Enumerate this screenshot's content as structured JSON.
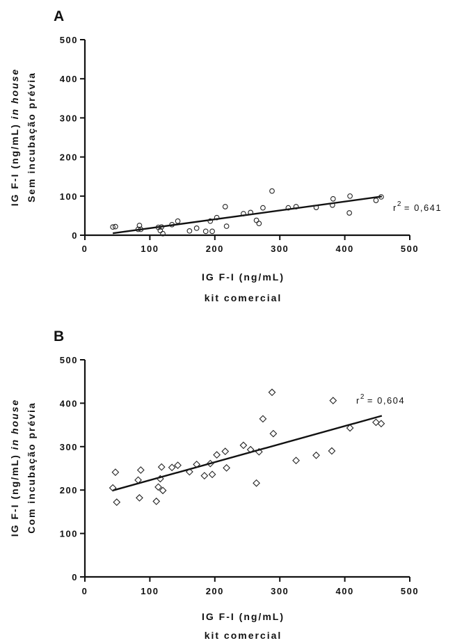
{
  "chart_data": [
    {
      "type": "scatter",
      "panel_label": "A",
      "xlabel_lines": [
        "IG F-I (ng/mL)",
        "kit comercial"
      ],
      "ylabel_lines": [
        [
          "IG F-I (ng/mL) ",
          "in house"
        ],
        [
          "Sem incubação prévia"
        ]
      ],
      "xlim": [
        0,
        500
      ],
      "ylim": [
        0,
        500
      ],
      "xticks": [
        0,
        100,
        200,
        300,
        400,
        500
      ],
      "yticks": [
        0,
        100,
        200,
        300,
        400,
        500
      ],
      "marker": "circle",
      "annotation": {
        "prefix": "r",
        "sup": "2",
        "suffix": "= 0,641"
      },
      "fit_line": {
        "x": [
          43,
          457
        ],
        "y": [
          5,
          99
        ]
      },
      "points": [
        {
          "x": 43,
          "y": 21
        },
        {
          "x": 47,
          "y": 22
        },
        {
          "x": 82,
          "y": 15
        },
        {
          "x": 84,
          "y": 25
        },
        {
          "x": 86,
          "y": 15
        },
        {
          "x": 113,
          "y": 20
        },
        {
          "x": 116,
          "y": 12
        },
        {
          "x": 118,
          "y": 21
        },
        {
          "x": 120,
          "y": 4
        },
        {
          "x": 134,
          "y": 27
        },
        {
          "x": 143,
          "y": 36
        },
        {
          "x": 161,
          "y": 11
        },
        {
          "x": 172,
          "y": 18
        },
        {
          "x": 186,
          "y": 10
        },
        {
          "x": 193,
          "y": 36
        },
        {
          "x": 196,
          "y": 10
        },
        {
          "x": 203,
          "y": 45
        },
        {
          "x": 216,
          "y": 73
        },
        {
          "x": 218,
          "y": 23
        },
        {
          "x": 244,
          "y": 55
        },
        {
          "x": 255,
          "y": 58
        },
        {
          "x": 264,
          "y": 38
        },
        {
          "x": 268,
          "y": 30
        },
        {
          "x": 274,
          "y": 70
        },
        {
          "x": 288,
          "y": 113
        },
        {
          "x": 313,
          "y": 70
        },
        {
          "x": 325,
          "y": 73
        },
        {
          "x": 356,
          "y": 71
        },
        {
          "x": 381,
          "y": 77
        },
        {
          "x": 382,
          "y": 93
        },
        {
          "x": 407,
          "y": 57
        },
        {
          "x": 408,
          "y": 100
        },
        {
          "x": 448,
          "y": 89
        },
        {
          "x": 456,
          "y": 98
        }
      ]
    },
    {
      "type": "scatter",
      "panel_label": "B",
      "xlabel_lines": [
        "IG F-I (ng/mL)",
        "kit comercial"
      ],
      "ylabel_lines": [
        [
          "IG F-I (ng/mL) ",
          "in house"
        ],
        [
          "Com incubação prévia"
        ]
      ],
      "xlim": [
        0,
        500
      ],
      "ylim": [
        0,
        500
      ],
      "xticks": [
        0,
        100,
        200,
        300,
        400,
        500
      ],
      "yticks": [
        0,
        100,
        200,
        300,
        400,
        500
      ],
      "marker": "diamond",
      "annotation": {
        "prefix": "r",
        "sup": "2",
        "suffix": "= 0,604"
      },
      "fit_line": {
        "x": [
          43,
          457
        ],
        "y": [
          199,
          371
        ]
      },
      "points": [
        {
          "x": 43,
          "y": 205
        },
        {
          "x": 47,
          "y": 241
        },
        {
          "x": 49,
          "y": 172
        },
        {
          "x": 82,
          "y": 223
        },
        {
          "x": 84,
          "y": 182
        },
        {
          "x": 86,
          "y": 246
        },
        {
          "x": 110,
          "y": 174
        },
        {
          "x": 113,
          "y": 207
        },
        {
          "x": 116,
          "y": 226
        },
        {
          "x": 118,
          "y": 253
        },
        {
          "x": 120,
          "y": 199
        },
        {
          "x": 134,
          "y": 252
        },
        {
          "x": 143,
          "y": 257
        },
        {
          "x": 161,
          "y": 242
        },
        {
          "x": 172,
          "y": 259
        },
        {
          "x": 184,
          "y": 233
        },
        {
          "x": 193,
          "y": 261
        },
        {
          "x": 196,
          "y": 236
        },
        {
          "x": 203,
          "y": 281
        },
        {
          "x": 216,
          "y": 289
        },
        {
          "x": 218,
          "y": 251
        },
        {
          "x": 244,
          "y": 303
        },
        {
          "x": 255,
          "y": 293
        },
        {
          "x": 264,
          "y": 216
        },
        {
          "x": 268,
          "y": 288
        },
        {
          "x": 274,
          "y": 364
        },
        {
          "x": 288,
          "y": 425
        },
        {
          "x": 290,
          "y": 330
        },
        {
          "x": 325,
          "y": 268
        },
        {
          "x": 356,
          "y": 280
        },
        {
          "x": 380,
          "y": 290
        },
        {
          "x": 382,
          "y": 406
        },
        {
          "x": 408,
          "y": 343
        },
        {
          "x": 448,
          "y": 356
        },
        {
          "x": 456,
          "y": 353
        }
      ]
    }
  ]
}
